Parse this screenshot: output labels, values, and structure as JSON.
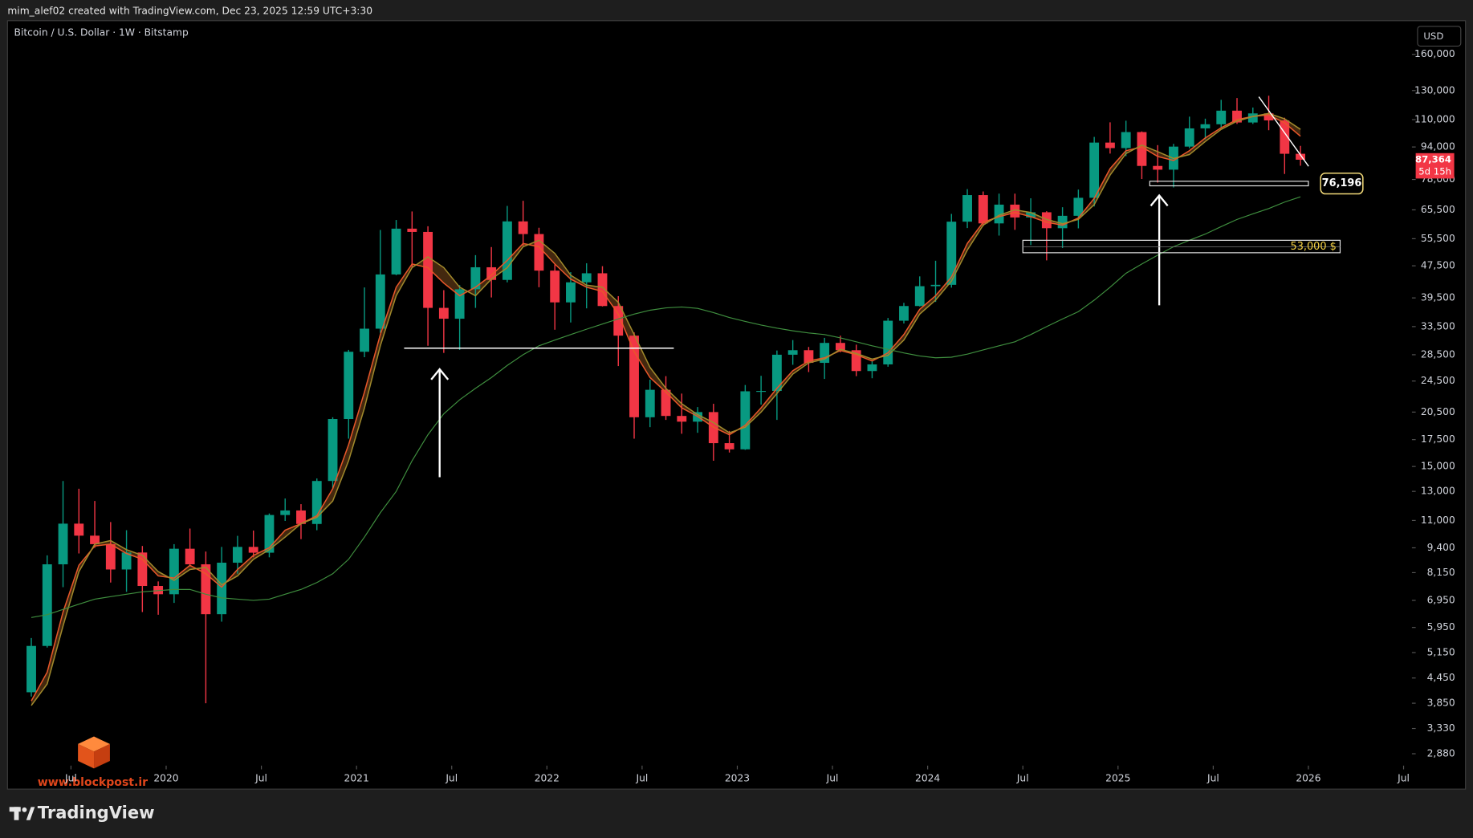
{
  "header": {
    "author_line": "mim_alef02 created with TradingView.com, Dec 23, 2025 12:59 UTC+3:30",
    "symbol": "Bitcoin / U.S. Dollar · 1W · Bitstamp",
    "currency": "USD"
  },
  "footer": {
    "brand": "TradingView",
    "watermark": "www.blockpost.ir"
  },
  "chart_data": {
    "type": "candlestick",
    "x": [
      "2019-04",
      "2019-05",
      "2019-06",
      "2019-07",
      "2019-08",
      "2019-09",
      "2019-10",
      "2019-11",
      "2019-12",
      "2020-01",
      "2020-02",
      "2020-03",
      "2020-04",
      "2020-05",
      "2020-06",
      "2020-07",
      "2020-08",
      "2020-09",
      "2020-10",
      "2020-11",
      "2020-12",
      "2021-01",
      "2021-02",
      "2021-03",
      "2021-04",
      "2021-05",
      "2021-06",
      "2021-07",
      "2021-08",
      "2021-09",
      "2021-10",
      "2021-11",
      "2021-12",
      "2022-01",
      "2022-02",
      "2022-03",
      "2022-04",
      "2022-05",
      "2022-06",
      "2022-07",
      "2022-08",
      "2022-09",
      "2022-10",
      "2022-11",
      "2022-12",
      "2023-01",
      "2023-02",
      "2023-03",
      "2023-04",
      "2023-05",
      "2023-06",
      "2023-07",
      "2023-08",
      "2023-09",
      "2023-10",
      "2023-11",
      "2023-12",
      "2024-01",
      "2024-02",
      "2024-03",
      "2024-04",
      "2024-05",
      "2024-06",
      "2024-07",
      "2024-08",
      "2024-09",
      "2024-10",
      "2024-11",
      "2024-12",
      "2025-01",
      "2025-02",
      "2025-03",
      "2025-04",
      "2025-05",
      "2025-06",
      "2025-07",
      "2025-08",
      "2025-09",
      "2025-10",
      "2025-11",
      "2025-12"
    ],
    "open": [
      4100,
      5350,
      8550,
      10800,
      10080,
      9600,
      8300,
      9150,
      7550,
      7200,
      9350,
      8550,
      6420,
      8630,
      9450,
      9140,
      11350,
      11650,
      10780,
      13800,
      19700,
      28990,
      33100,
      45200,
      58800,
      57700,
      37300,
      35050,
      41500,
      47100,
      43800,
      61300,
      57000,
      46200,
      38500,
      43200,
      45500,
      37700,
      31800,
      19900,
      23300,
      20050,
      19400,
      20500,
      17150,
      16550,
      23100,
      23150,
      28500,
      29250,
      27200,
      30500,
      29250,
      25950,
      26960,
      34650,
      37700,
      42250,
      42580,
      61200,
      71300,
      60600,
      67500,
      62700,
      64600,
      58950,
      63300,
      70200,
      96400,
      93400,
      102400,
      84300,
      82500,
      94200,
      104600,
      107100,
      115800,
      108200,
      114000,
      109500,
      90400
    ],
    "high": [
      5600,
      9000,
      13800,
      13200,
      12300,
      10900,
      10400,
      9500,
      7750,
      9600,
      10500,
      9200,
      9450,
      10070,
      10380,
      11450,
      12480,
      12080,
      14000,
      19900,
      29300,
      41950,
      58350,
      61800,
      64900,
      59600,
      41300,
      42500,
      50500,
      52900,
      67000,
      69000,
      59100,
      47900,
      45800,
      48200,
      47400,
      39900,
      32400,
      24700,
      25200,
      22800,
      21100,
      21500,
      18400,
      23950,
      25250,
      29200,
      31000,
      29800,
      31400,
      31800,
      30200,
      27500,
      35200,
      38400,
      44700,
      48900,
      64000,
      73800,
      72800,
      71900,
      71900,
      70000,
      65000,
      66500,
      73600,
      99600,
      108300,
      109300,
      102800,
      95000,
      95700,
      111900,
      110600,
      123200,
      124500,
      117900,
      126200,
      111200,
      94600
    ],
    "low": [
      4000,
      5300,
      7500,
      9100,
      9400,
      7700,
      7300,
      6500,
      6400,
      6850,
      8450,
      3850,
      6150,
      8100,
      8900,
      8900,
      10970,
      9880,
      10400,
      13200,
      17600,
      28100,
      32300,
      45000,
      47000,
      30000,
      28800,
      29300,
      37300,
      39600,
      43200,
      53300,
      42000,
      32900,
      34300,
      37200,
      37600,
      26700,
      17600,
      18800,
      19600,
      18100,
      18200,
      15500,
      16250,
      16500,
      21400,
      19600,
      26900,
      25800,
      24800,
      28900,
      25200,
      24900,
      26600,
      34100,
      37600,
      38600,
      41900,
      59000,
      59600,
      56500,
      58400,
      53500,
      49000,
      52600,
      58900,
      66800,
      90500,
      89200,
      78200,
      76600,
      74500,
      93300,
      98200,
      105100,
      107300,
      107300,
      103500,
      80500,
      84400
    ],
    "close": [
      5350,
      8550,
      10800,
      10080,
      9600,
      8300,
      9150,
      7550,
      7200,
      9350,
      8550,
      6420,
      8630,
      9450,
      9140,
      11350,
      11650,
      10780,
      13800,
      19700,
      28990,
      33100,
      45200,
      58800,
      57700,
      37300,
      35050,
      41500,
      47100,
      43800,
      61300,
      57000,
      46200,
      38500,
      43200,
      45500,
      37700,
      31800,
      19900,
      23300,
      20050,
      19400,
      20500,
      17150,
      16550,
      23100,
      23150,
      28500,
      29250,
      27200,
      30500,
      29250,
      25950,
      26960,
      34650,
      37700,
      42250,
      42580,
      61200,
      71300,
      60600,
      67500,
      62700,
      64600,
      58950,
      63300,
      70200,
      96400,
      93400,
      102400,
      84300,
      82500,
      94200,
      104600,
      107100,
      115800,
      108200,
      114000,
      109500,
      90400,
      87364
    ],
    "up_color": "#089981",
    "down_color": "#f23645",
    "series": [
      {
        "color": "#e8572a",
        "values": [
          3900,
          4600,
          6500,
          8500,
          9500,
          9600,
          9100,
          8800,
          8000,
          7900,
          8500,
          8100,
          7500,
          8300,
          9000,
          9400,
          10400,
          10800,
          11300,
          13200,
          17000,
          23000,
          32000,
          42000,
          48000,
          47000,
          43000,
          40000,
          42000,
          45000,
          49000,
          54000,
          53000,
          48000,
          44000,
          42000,
          41000,
          36000,
          29000,
          25000,
          23000,
          21000,
          20000,
          18800,
          18000,
          19000,
          21000,
          23500,
          26000,
          27500,
          28000,
          29200,
          28500,
          27500,
          28800,
          32000,
          37000,
          40000,
          44500,
          54000,
          61000,
          63000,
          64500,
          63000,
          61000,
          60000,
          62500,
          70000,
          83000,
          92000,
          94000,
          89000,
          87000,
          92000,
          99000,
          105000,
          110000,
          112000,
          113000,
          108000,
          100000
        ]
      },
      {
        "color": "#a08a2c",
        "values": [
          3800,
          4300,
          6000,
          8200,
          9600,
          9800,
          9300,
          9000,
          8200,
          7800,
          8300,
          8400,
          7600,
          8000,
          8800,
          9300,
          10000,
          10800,
          11200,
          12300,
          15500,
          21000,
          30000,
          40000,
          47000,
          50000,
          47000,
          42000,
          40000,
          44000,
          47000,
          53000,
          55000,
          51000,
          45000,
          42500,
          42000,
          38500,
          32000,
          26500,
          23500,
          21500,
          20200,
          19300,
          18200,
          18800,
          20500,
          22800,
          25500,
          27200,
          27800,
          29400,
          28700,
          27800,
          28400,
          31000,
          36000,
          39000,
          43500,
          52000,
          60000,
          63500,
          65500,
          64500,
          62000,
          60500,
          62000,
          67500,
          80000,
          90500,
          95000,
          91500,
          88000,
          90000,
          97000,
          104000,
          109000,
          112000,
          114000,
          110500,
          104000
        ]
      },
      {
        "color": "#3f8f3f",
        "values": [
          6300,
          6400,
          6600,
          6800,
          7000,
          7100,
          7200,
          7300,
          7350,
          7400,
          7400,
          7200,
          7050,
          7000,
          6950,
          7000,
          7200,
          7400,
          7700,
          8100,
          8800,
          10000,
          11500,
          13000,
          15500,
          18000,
          20300,
          22000,
          23500,
          25000,
          26800,
          28500,
          30000,
          31000,
          32000,
          33000,
          34000,
          35000,
          36000,
          36800,
          37300,
          37500,
          37200,
          36300,
          35300,
          34500,
          33800,
          33200,
          32700,
          32300,
          32000,
          31400,
          30700,
          30000,
          29400,
          28800,
          28300,
          28000,
          28100,
          28600,
          29300,
          30000,
          30700,
          32000,
          33500,
          35000,
          36500,
          39000,
          42000,
          45500,
          48000,
          50500,
          53000,
          55000,
          57000,
          59500,
          62000,
          64000,
          66000,
          68500,
          70600
        ]
      }
    ],
    "ribbon_fill": "#5a3514",
    "log_scale": true,
    "ylim": [
      2690,
      190000
    ],
    "yticks": [
      {
        "value": 160000,
        "label": "160,000"
      },
      {
        "value": 130000,
        "label": "130,000"
      },
      {
        "value": 110000,
        "label": "110,000"
      },
      {
        "value": 94000,
        "label": "94,000"
      },
      {
        "value": 78000,
        "label": "78,000"
      },
      {
        "value": 65500,
        "label": "65,500"
      },
      {
        "value": 55500,
        "label": "55,500"
      },
      {
        "value": 47500,
        "label": "47,500"
      },
      {
        "value": 39500,
        "label": "39,500"
      },
      {
        "value": 33500,
        "label": "33,500"
      },
      {
        "value": 28500,
        "label": "28,500"
      },
      {
        "value": 24500,
        "label": "24,500"
      },
      {
        "value": 20500,
        "label": "20,500"
      },
      {
        "value": 17500,
        "label": "17,500"
      },
      {
        "value": 15000,
        "label": "15,000"
      },
      {
        "value": 13000,
        "label": "13,000"
      },
      {
        "value": 11000,
        "label": "11,000"
      },
      {
        "value": 9400,
        "label": "9,400"
      },
      {
        "value": 8150,
        "label": "8,150"
      },
      {
        "value": 6950,
        "label": "6,950"
      },
      {
        "value": 5950,
        "label": "5,950"
      },
      {
        "value": 5150,
        "label": "5,150"
      },
      {
        "value": 4450,
        "label": "4,450"
      },
      {
        "value": 3850,
        "label": "3,850"
      },
      {
        "value": 3330,
        "label": "3,330"
      },
      {
        "value": 2880,
        "label": "2,880"
      }
    ],
    "xlim": [
      "2019-03",
      "2026-08"
    ],
    "xticks": [
      {
        "value": "2019-07",
        "label": "Jul"
      },
      {
        "value": "2020-01",
        "label": "2020"
      },
      {
        "value": "2020-07",
        "label": "Jul"
      },
      {
        "value": "2021-01",
        "label": "2021"
      },
      {
        "value": "2021-07",
        "label": "Jul"
      },
      {
        "value": "2022-01",
        "label": "2022"
      },
      {
        "value": "2022-07",
        "label": "Jul"
      },
      {
        "value": "2023-01",
        "label": "2023"
      },
      {
        "value": "2023-07",
        "label": "Jul"
      },
      {
        "value": "2024-01",
        "label": "2024"
      },
      {
        "value": "2024-07",
        "label": "Jul"
      },
      {
        "value": "2025-01",
        "label": "2025"
      },
      {
        "value": "2025-07",
        "label": "Jul"
      },
      {
        "value": "2026-01",
        "label": "2026"
      },
      {
        "value": "2026-07",
        "label": "Jul"
      }
    ],
    "last_price": {
      "value": 87364,
      "label": "87,364",
      "countdown": "5d 15h",
      "color": "#f23645"
    },
    "annotations": [
      {
        "type": "line",
        "value": 29600,
        "from": "2021-04",
        "to": "2022-09"
      },
      {
        "type": "zone",
        "top": 77200,
        "bottom": 75200,
        "from": "2025-03",
        "to": "2026-01",
        "label": {
          "value": 76196,
          "label": "76,196"
        }
      },
      {
        "type": "zone",
        "top": 55000,
        "bottom": 51200,
        "from": "2024-07",
        "to": "2026-03",
        "label": {
          "value": 53000,
          "label": "53,000 $"
        }
      }
    ]
  }
}
